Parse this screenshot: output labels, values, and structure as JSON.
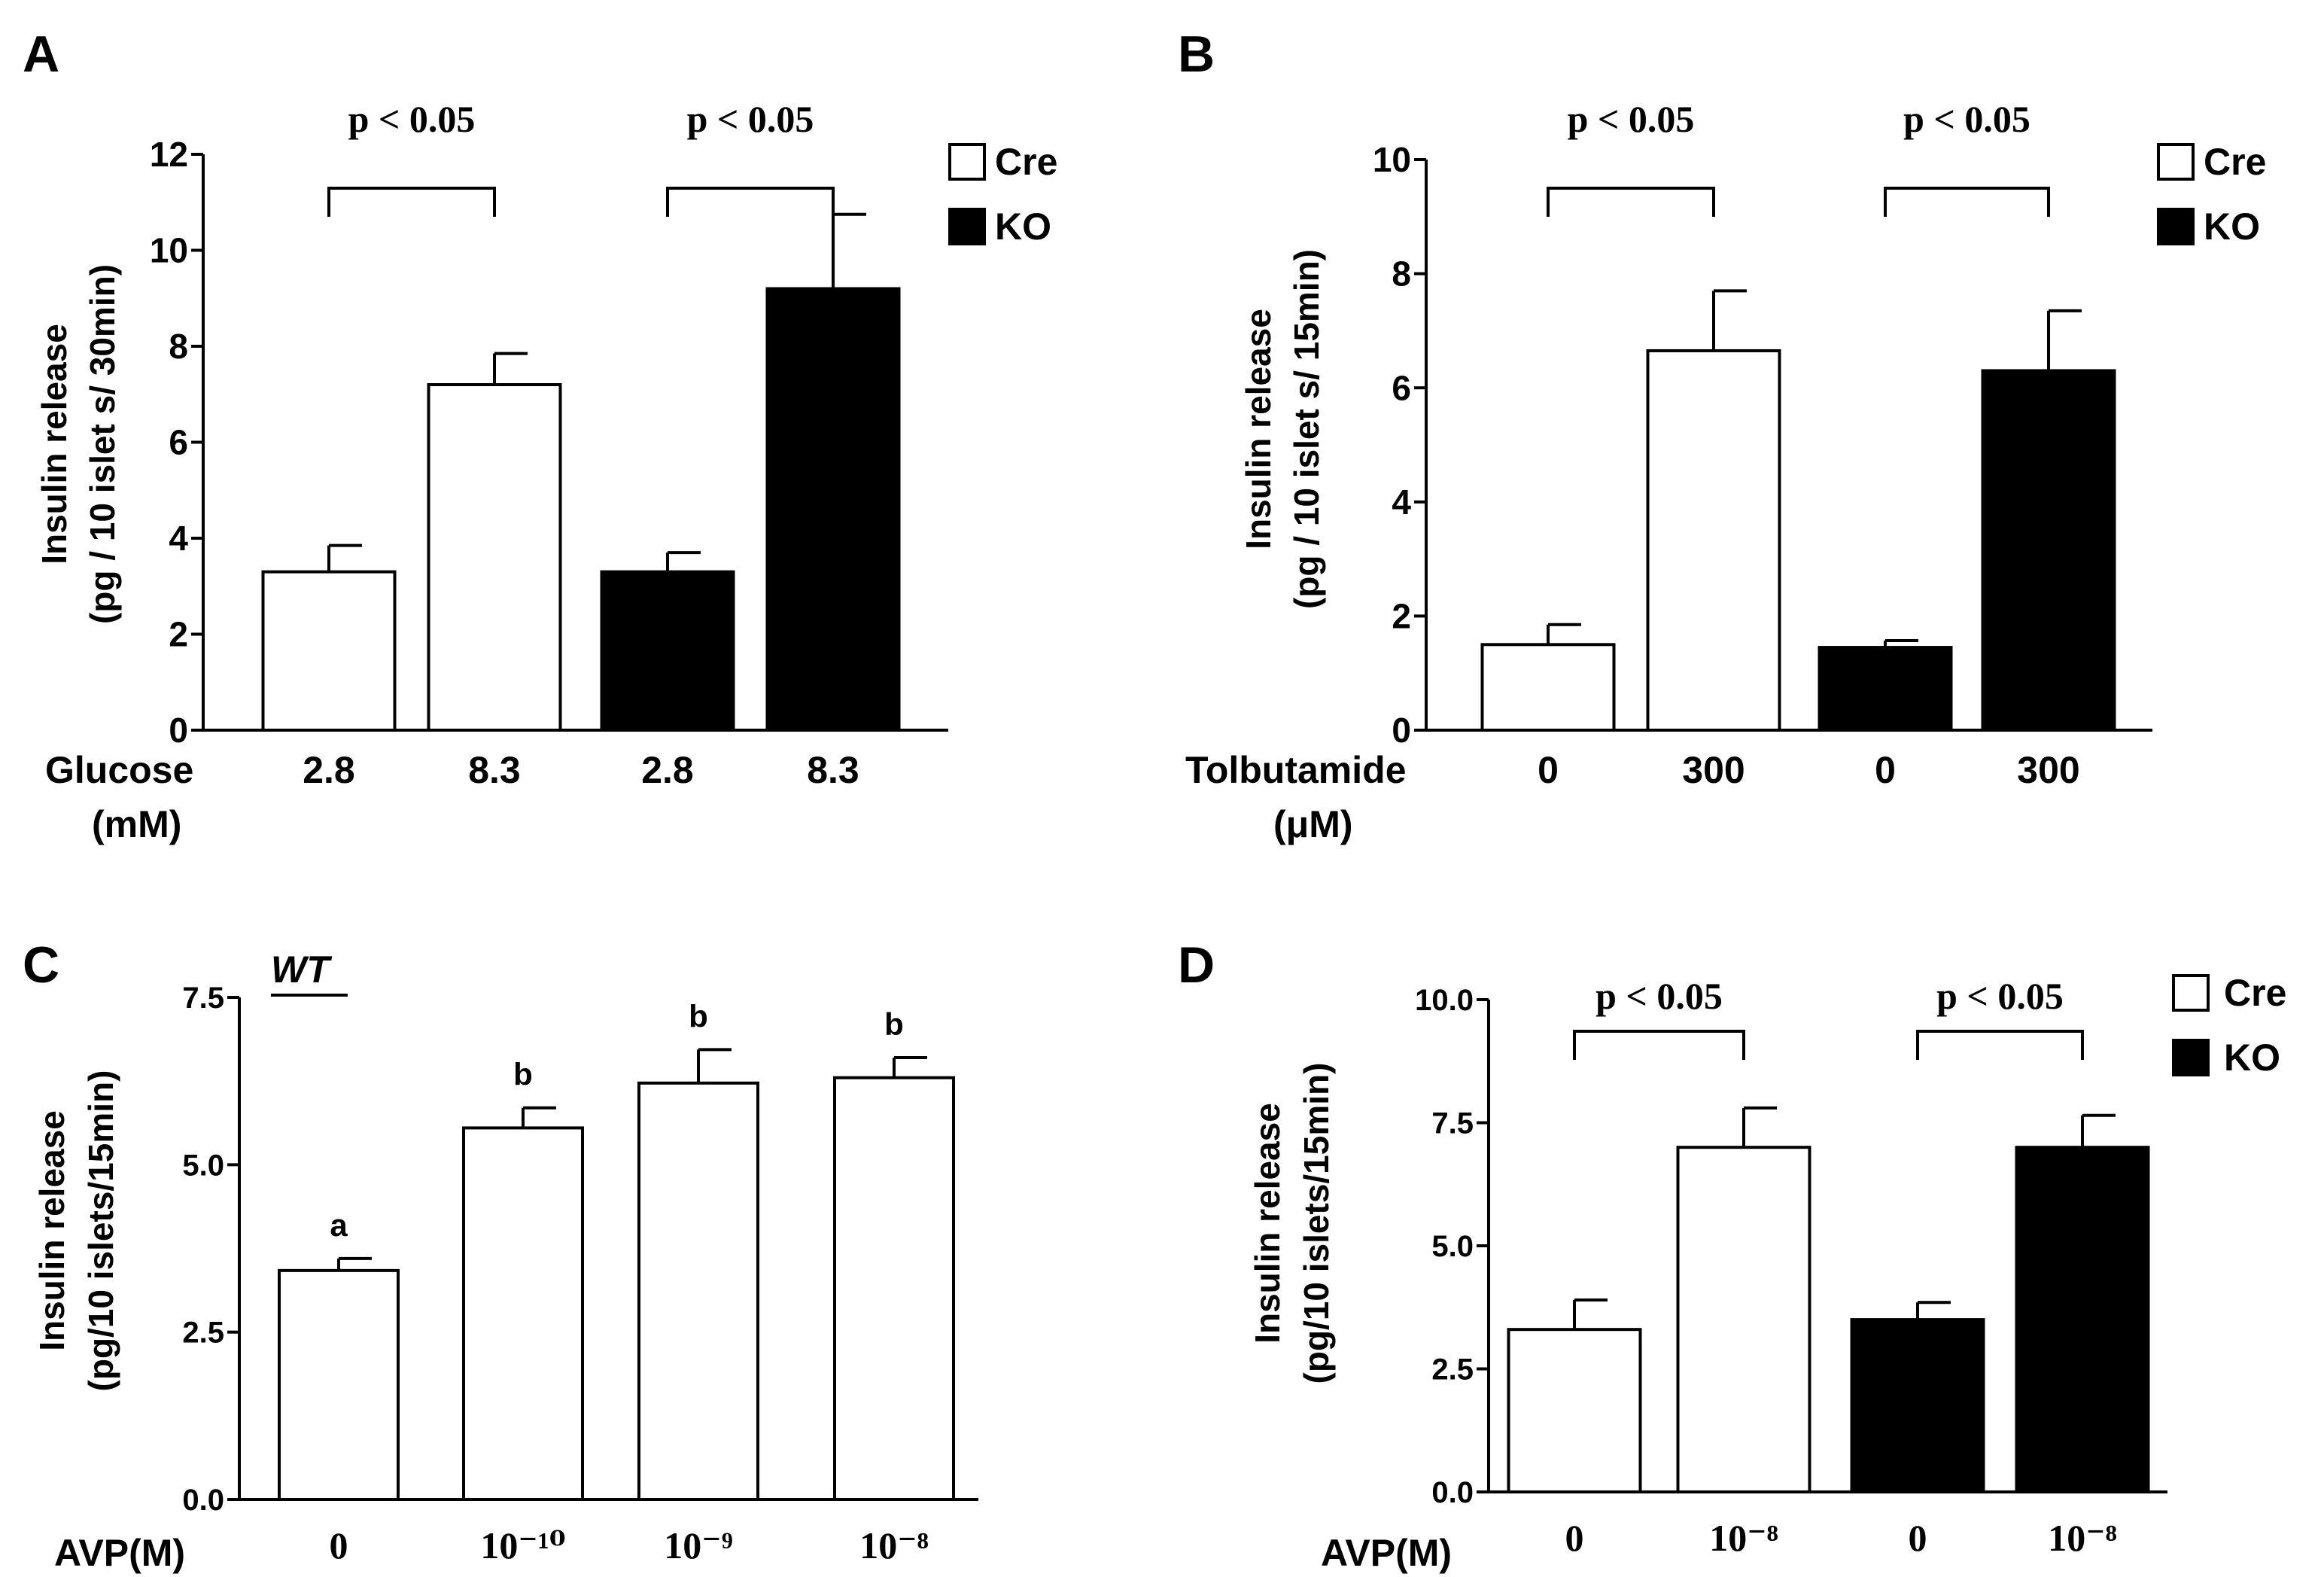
{
  "colors": {
    "cre": "#ffffff",
    "ko": "#000000",
    "ink": "#000000"
  },
  "chart_data": [
    {
      "panel": "A",
      "type": "bar",
      "title": "",
      "xlabel": "Glucose",
      "xunit": "(mM)",
      "ylabel": [
        "Insulin release",
        "(pg / 10 islet s/ 30min)"
      ],
      "ylim": [
        0,
        12
      ],
      "yticks": [
        "0",
        "2",
        "4",
        "6",
        "8",
        "10",
        "12"
      ],
      "categories": [
        "2.8",
        "8.3",
        "2.8",
        "8.3"
      ],
      "groups": [
        "Cre",
        "Cre",
        "KO",
        "KO"
      ],
      "values": [
        3.3,
        7.2,
        3.3,
        9.2
      ],
      "errors": [
        0.55,
        0.65,
        0.4,
        1.55
      ],
      "legend": [
        "Cre",
        "KO"
      ],
      "legend_position": "top-right",
      "annotations": [
        {
          "text": "p < 0.05",
          "from": 0,
          "to": 1
        },
        {
          "text": "p < 0.05",
          "from": 2,
          "to": 3
        }
      ]
    },
    {
      "panel": "B",
      "type": "bar",
      "title": "",
      "xlabel": "Tolbutamide",
      "xunit": "(μM)",
      "ylabel": [
        "Insulin release",
        "(pg / 10 islet s/ 15min)"
      ],
      "ylim": [
        0,
        10
      ],
      "yticks": [
        "0",
        "2",
        "4",
        "6",
        "8",
        "10"
      ],
      "categories": [
        "0",
        "300",
        "0",
        "300"
      ],
      "groups": [
        "Cre",
        "Cre",
        "KO",
        "KO"
      ],
      "values": [
        1.5,
        6.65,
        1.45,
        6.3
      ],
      "errors": [
        0.35,
        1.05,
        0.12,
        1.05
      ],
      "legend": [
        "Cre",
        "KO"
      ],
      "legend_position": "top-right",
      "annotations": [
        {
          "text": "p < 0.05",
          "from": 0,
          "to": 1
        },
        {
          "text": "p < 0.05",
          "from": 2,
          "to": 3
        }
      ]
    },
    {
      "panel": "C",
      "type": "bar",
      "title": "WT",
      "xlabel": "AVP(M)",
      "xunit": "",
      "ylabel": [
        "Insulin release",
        "(pg/10 islets/15min)"
      ],
      "ylim": [
        0,
        7.5
      ],
      "yticks": [
        "0.0",
        "2.5",
        "5.0",
        "7.5"
      ],
      "categories": [
        "0",
        "10⁻¹⁰",
        "10⁻⁹",
        "10⁻⁸"
      ],
      "groups": [
        "WT",
        "WT",
        "WT",
        "WT"
      ],
      "values": [
        3.42,
        5.55,
        6.22,
        6.3
      ],
      "errors": [
        0.18,
        0.3,
        0.5,
        0.3
      ],
      "significance_letters": [
        "a",
        "b",
        "b",
        "b"
      ],
      "legend": [],
      "legend_position": "none",
      "annotations": []
    },
    {
      "panel": "D",
      "type": "bar",
      "title": "",
      "xlabel": "AVP(M)",
      "xunit": "",
      "ylabel": [
        "Insulin release",
        "(pg/10 islets/15min)"
      ],
      "ylim": [
        0,
        10
      ],
      "yticks": [
        "0.0",
        "2.5",
        "5.0",
        "7.5",
        "10.0"
      ],
      "categories": [
        "0",
        "10⁻⁸",
        "0",
        "10⁻⁸"
      ],
      "groups": [
        "Cre",
        "Cre",
        "KO",
        "KO"
      ],
      "values": [
        3.3,
        7.0,
        3.5,
        7.0
      ],
      "errors": [
        0.6,
        0.8,
        0.35,
        0.65
      ],
      "legend": [
        "Cre",
        "KO"
      ],
      "legend_position": "top-right",
      "annotations": [
        {
          "text": "p < 0.05",
          "from": 0,
          "to": 1
        },
        {
          "text": "p < 0.05",
          "from": 2,
          "to": 3
        }
      ]
    }
  ]
}
